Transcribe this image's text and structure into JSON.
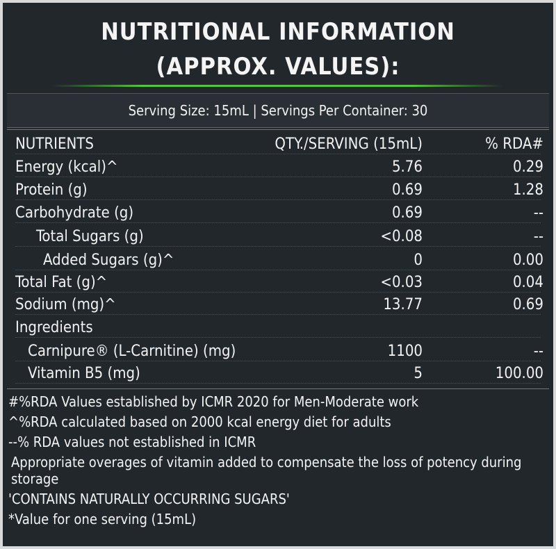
{
  "header": {
    "title_lines": [
      "NUTRITIONAL INFORMATION",
      "(APPROX. VALUES):"
    ]
  },
  "serving": "Serving Size: 15mL | Servings Per Container: 30",
  "table": {
    "header": [
      "NUTRIENTS",
      "QTY./SERVING (15mL)",
      "% RDA#"
    ],
    "rows": [
      [
        "Energy (kcal)^",
        "5.76",
        "0.29"
      ],
      [
        "Protein (g)",
        "0.69",
        "1.28"
      ],
      [
        "Carbohydrate (g)",
        "0.69",
        "--"
      ],
      [
        "Total Sugars (g)",
        "<0.08",
        "--"
      ],
      [
        "Added Sugars (g)^",
        "0",
        "0.00"
      ],
      [
        "Total Fat (g)^",
        "<0.03",
        "0.04"
      ],
      [
        "Sodium (mg)^",
        "13.77",
        "0.69"
      ],
      [
        "Ingredients"
      ],
      [
        "Carnipure® (L-Carnitine) (mg)",
        "1100",
        "--"
      ],
      [
        "Vitamin B5 (mg)",
        "5",
        "100.00"
      ]
    ]
  },
  "footnotes": [
    "#%RDA Values established by ICMR 2020 for Men-Moderate work",
    "^%RDA calculated based on 2000 kcal energy diet for adults",
    "--% RDA values not established in ICMR",
    "Appropriate overages of vitamin added to compensate the loss of potency during storage",
    "'CONTAINS NATURALLY OCCURRING SUGARS'",
    "*Value for one serving (15mL)"
  ]
}
